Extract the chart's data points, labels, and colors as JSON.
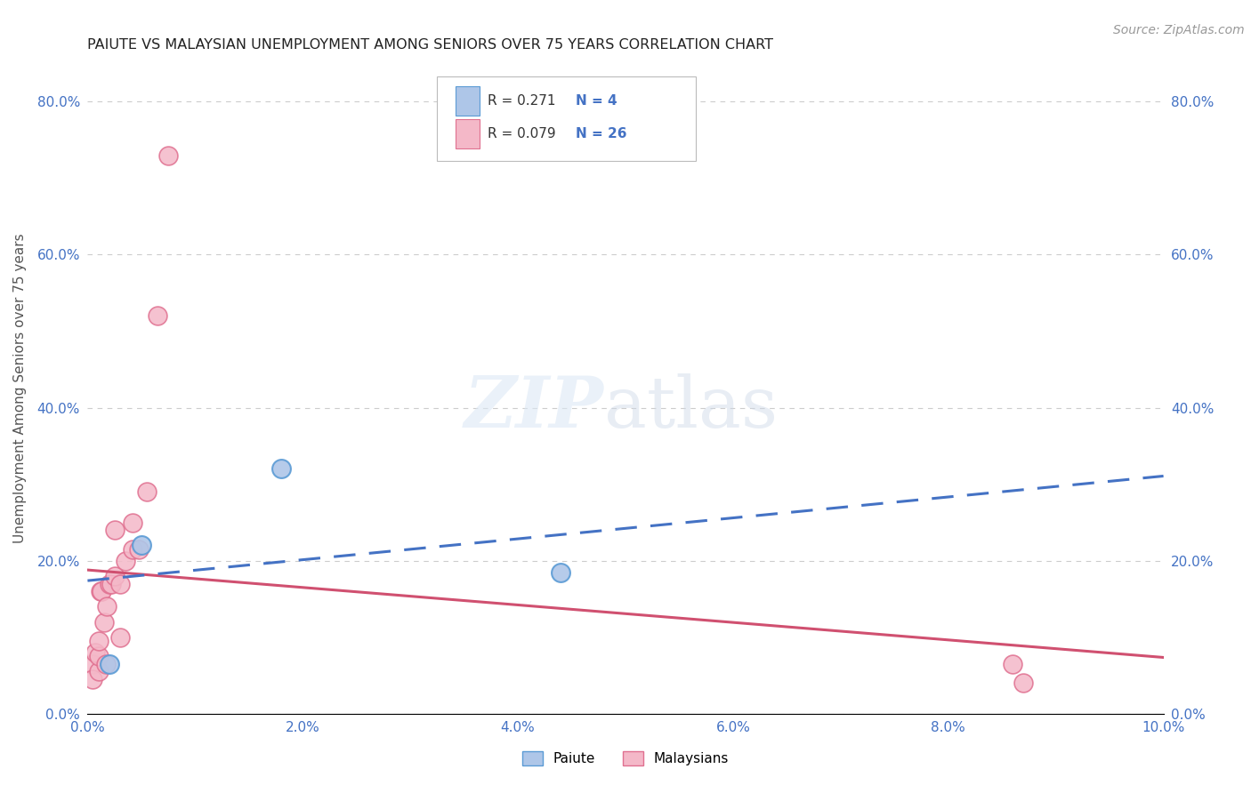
{
  "title": "PAIUTE VS MALAYSIAN UNEMPLOYMENT AMONG SENIORS OVER 75 YEARS CORRELATION CHART",
  "source": "Source: ZipAtlas.com",
  "ylabel": "Unemployment Among Seniors over 75 years",
  "xlim": [
    0.0,
    0.1
  ],
  "ylim": [
    0.0,
    0.85
  ],
  "xticks": [
    0.0,
    0.02,
    0.04,
    0.06,
    0.08,
    0.1
  ],
  "xtick_labels": [
    "0.0%",
    "2.0%",
    "4.0%",
    "6.0%",
    "8.0%",
    "10.0%"
  ],
  "yticks": [
    0.0,
    0.2,
    0.4,
    0.6,
    0.8
  ],
  "ytick_labels": [
    "0.0%",
    "20.0%",
    "40.0%",
    "60.0%",
    "80.0%"
  ],
  "paiute_color": "#aec6e8",
  "paiute_edge_color": "#5b9bd5",
  "malaysian_color": "#f4b8c8",
  "malaysian_edge_color": "#e07090",
  "paiute_scatter_x": [
    0.005,
    0.002,
    0.018,
    0.044
  ],
  "paiute_scatter_y": [
    0.22,
    0.065,
    0.32,
    0.185
  ],
  "malaysian_scatter_x": [
    0.0005,
    0.0005,
    0.0007,
    0.001,
    0.001,
    0.001,
    0.0012,
    0.0013,
    0.0015,
    0.0017,
    0.0018,
    0.002,
    0.0022,
    0.0025,
    0.0025,
    0.003,
    0.003,
    0.0035,
    0.0042,
    0.0042,
    0.0048,
    0.0055,
    0.0065,
    0.0075,
    0.086,
    0.087
  ],
  "malaysian_scatter_y": [
    0.065,
    0.045,
    0.08,
    0.055,
    0.075,
    0.095,
    0.16,
    0.16,
    0.12,
    0.065,
    0.14,
    0.17,
    0.17,
    0.18,
    0.24,
    0.17,
    0.1,
    0.2,
    0.25,
    0.215,
    0.215,
    0.29,
    0.52,
    0.73,
    0.065,
    0.04
  ],
  "paiute_R": 0.271,
  "paiute_N": 4,
  "malaysian_R": 0.079,
  "malaysian_N": 26,
  "paiute_line_color": "#4472c4",
  "malaysian_line_color": "#d05070",
  "legend_labels": [
    "Paiute",
    "Malaysians"
  ],
  "marker_size": 15,
  "bg_color": "#ffffff",
  "tick_color": "#4472c4",
  "grid_color": "#cccccc",
  "title_color": "#222222",
  "ylabel_color": "#555555",
  "source_color": "#999999"
}
